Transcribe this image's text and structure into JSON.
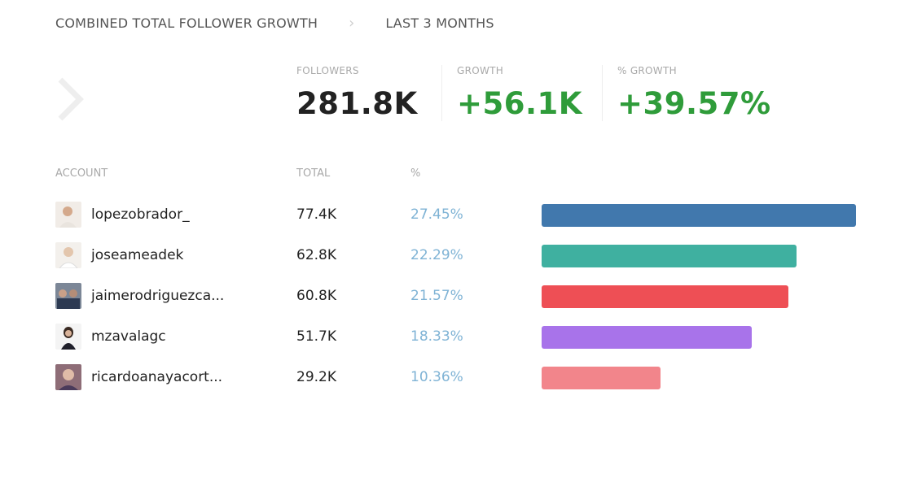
{
  "header": {
    "title": "COMBINED TOTAL FOLLOWER GROWTH",
    "period": "LAST 3 MONTHS"
  },
  "stats": [
    {
      "label": "FOLLOWERS",
      "value": "281.8K",
      "color": "#222222"
    },
    {
      "label": "GROWTH",
      "value": "+56.1K",
      "color": "#2f9c3a"
    },
    {
      "label": "% GROWTH",
      "value": "+39.57%",
      "color": "#2f9c3a"
    }
  ],
  "table": {
    "headers": [
      "ACCOUNT",
      "TOTAL",
      "%"
    ],
    "rows": [
      {
        "account": "lopezobrador_",
        "total": "77.4K",
        "pct": "27.45%",
        "share": 27.45,
        "color": "#4178ad"
      },
      {
        "account": "joseameadek",
        "total": "62.8K",
        "pct": "22.29%",
        "share": 22.29,
        "color": "#3fb0a0"
      },
      {
        "account": "jaimerodriguezca...",
        "total": "60.8K",
        "pct": "21.57%",
        "share": 21.57,
        "color": "#ee4f55"
      },
      {
        "account": "mzavalagc",
        "total": "51.7K",
        "pct": "18.33%",
        "share": 18.33,
        "color": "#a873ea"
      },
      {
        "account": "ricardoanayacort...",
        "total": "29.2K",
        "pct": "10.36%",
        "share": 10.36,
        "color": "#f2858b"
      }
    ]
  }
}
